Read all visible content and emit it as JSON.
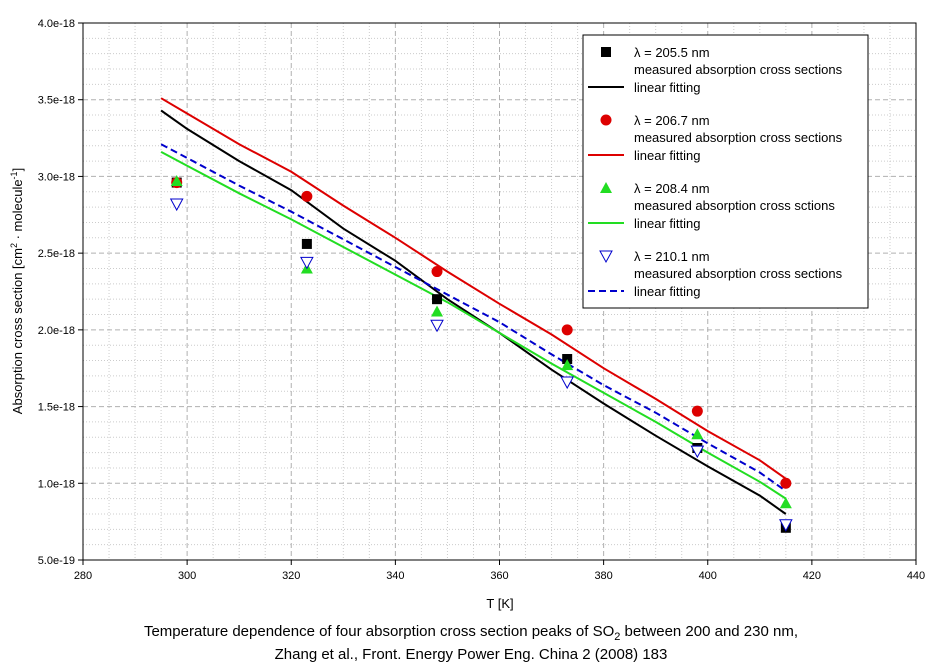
{
  "chart_data": {
    "type": "scatter",
    "title": "",
    "xlabel": "T [K]",
    "ylabel_main": "Absorption cross section [cm",
    "ylabel_sup1": "2",
    "ylabel_mid": " · molecule",
    "ylabel_sup2": "-1",
    "ylabel_end": "]",
    "xlim": [
      280,
      440
    ],
    "ylim": [
      5e-19,
      4e-18
    ],
    "x_ticks": [
      280,
      300,
      320,
      340,
      360,
      380,
      400,
      420,
      440
    ],
    "y_ticks": [
      5e-19,
      1e-18,
      1.5e-18,
      2e-18,
      2.5e-18,
      3e-18,
      3.5e-18,
      4e-18
    ],
    "x_tick_labels": [
      "280",
      "300",
      "320",
      "340",
      "360",
      "380",
      "400",
      "420",
      "440"
    ],
    "y_tick_labels": [
      "5.0e-19",
      "1.0e-18",
      "1.5e-18",
      "2.0e-18",
      "2.5e-18",
      "3.0e-18",
      "3.5e-18",
      "4.0e-18"
    ],
    "grid": true,
    "legend_position": "top-right",
    "series": [
      {
        "name": "λ = 205.5 nm",
        "points_label": "measured absorption cross sections",
        "fit_label": "linear fitting",
        "color": "#000000",
        "marker": "square",
        "fit_dash": "solid",
        "x": [
          298,
          323,
          348,
          373,
          398,
          415
        ],
        "y": [
          2.96e-18,
          2.56e-18,
          2.2e-18,
          1.81e-18,
          1.23e-18,
          7.1e-19
        ],
        "fit": {
          "x": [
            295,
            300,
            310,
            320,
            330,
            340,
            350,
            360,
            370,
            380,
            390,
            400,
            410,
            415
          ],
          "y": [
            3.43e-18,
            3.31e-18,
            3.1e-18,
            2.91e-18,
            2.66e-18,
            2.45e-18,
            2.2e-18,
            1.98e-18,
            1.74e-18,
            1.52e-18,
            1.31e-18,
            1.11e-18,
            9.2e-19,
            8e-19
          ]
        }
      },
      {
        "name": "λ = 206.7 nm",
        "points_label": "measured absorption cross sections",
        "fit_label": "linear fitting",
        "color": "#dd0000",
        "marker": "circle",
        "fit_dash": "solid",
        "x": [
          298,
          323,
          348,
          373,
          398,
          415
        ],
        "y": [
          2.96e-18,
          2.87e-18,
          2.38e-18,
          2e-18,
          1.47e-18,
          1e-18
        ],
        "fit": {
          "x": [
            295,
            300,
            310,
            320,
            330,
            340,
            350,
            360,
            370,
            380,
            390,
            400,
            410,
            415
          ],
          "y": [
            3.51e-18,
            3.41e-18,
            3.21e-18,
            3.03e-18,
            2.81e-18,
            2.6e-18,
            2.38e-18,
            2.17e-18,
            1.97e-18,
            1.75e-18,
            1.55e-18,
            1.34e-18,
            1.15e-18,
            1.03e-18
          ]
        }
      },
      {
        "name": "λ = 208.4 nm",
        "points_label": "measured absorption cross sctions",
        "fit_label": "linear fitting",
        "color": "#22dd22",
        "marker": "triangle-up",
        "fit_dash": "solid",
        "x": [
          298,
          323,
          348,
          373,
          398,
          415
        ],
        "y": [
          2.97e-18,
          2.4e-18,
          2.12e-18,
          1.77e-18,
          1.32e-18,
          8.7e-19
        ],
        "fit": {
          "x": [
            295,
            300,
            310,
            320,
            330,
            340,
            350,
            360,
            370,
            380,
            390,
            400,
            410,
            415
          ],
          "y": [
            3.16e-18,
            3.07e-18,
            2.89e-18,
            2.72e-18,
            2.54e-18,
            2.36e-18,
            2.18e-18,
            1.98e-18,
            1.78e-18,
            1.59e-18,
            1.4e-18,
            1.2e-18,
            1.01e-18,
            9e-19
          ]
        }
      },
      {
        "name": "λ = 210.1 nm",
        "points_label": "measured absorption cross sections",
        "fit_label": "linear fitting",
        "color": "#0000cc",
        "marker": "triangle-down-open",
        "fit_dash": "dashed",
        "x": [
          298,
          323,
          348,
          373,
          398,
          415
        ],
        "y": [
          2.82e-18,
          2.44e-18,
          2.03e-18,
          1.66e-18,
          1.21e-18,
          7.3e-19
        ],
        "fit": {
          "x": [
            295,
            300,
            310,
            320,
            330,
            340,
            350,
            360,
            370,
            380,
            390,
            400,
            410,
            415
          ],
          "y": [
            3.21e-18,
            3.12e-18,
            2.94e-18,
            2.77e-18,
            2.59e-18,
            2.41e-18,
            2.23e-18,
            2.05e-18,
            1.84e-18,
            1.64e-18,
            1.46e-18,
            1.26e-18,
            1.07e-18,
            9.5e-19
          ]
        }
      }
    ]
  },
  "caption": {
    "line1_pre": "Temperature dependence of four absorption cross section peaks of SO",
    "line1_sub": "2",
    "line1_post": " between 200 and 230 nm,",
    "line2": "Zhang et al., Front. Energy Power Eng. China 2 (2008) 183"
  }
}
